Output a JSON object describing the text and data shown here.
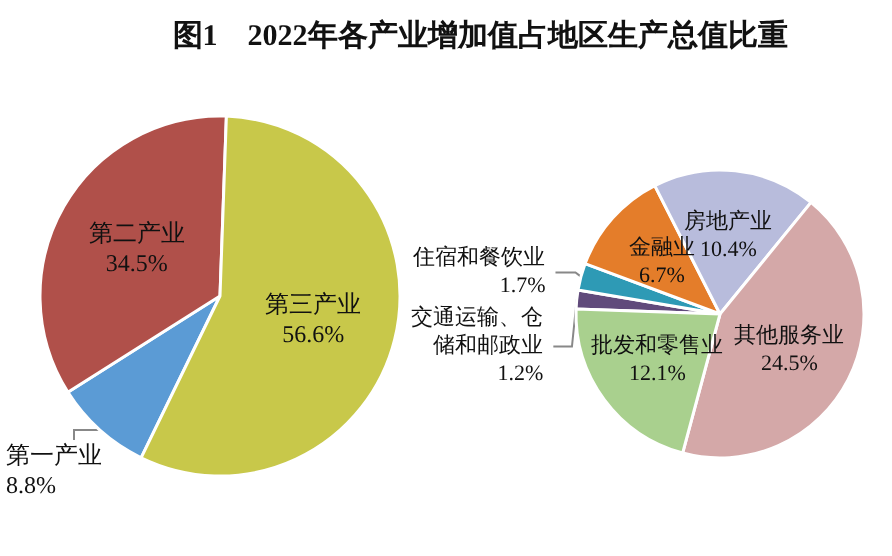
{
  "chart_data": [
    {
      "type": "pie",
      "title": "图1　2022年各产业增加值占地区生产总值比重",
      "categories": [
        "第一产业",
        "第二产业",
        "第三产业"
      ],
      "values": [
        8.8,
        34.5,
        56.6
      ],
      "value_labels": [
        "8.8%",
        "34.5%",
        "56.6%"
      ],
      "colors": [
        "#5b9bd5",
        "#b0504a",
        "#c8c84a"
      ]
    },
    {
      "type": "pie",
      "categories": [
        "交通运输、仓储和邮政业",
        "住宿和餐饮业",
        "金融业",
        "房地产业",
        "其他服务业",
        "批发和零售业"
      ],
      "values": [
        1.2,
        1.7,
        6.7,
        10.4,
        24.5,
        12.1
      ],
      "value_labels": [
        "1.2%",
        "1.7%",
        "6.7%",
        "10.4%",
        "24.5%",
        "12.1%"
      ],
      "colors": [
        "#604a7b",
        "#2e9ab5",
        "#e47d2a",
        "#b8bcdc",
        "#d4a8a8",
        "#a9d08e"
      ]
    }
  ]
}
